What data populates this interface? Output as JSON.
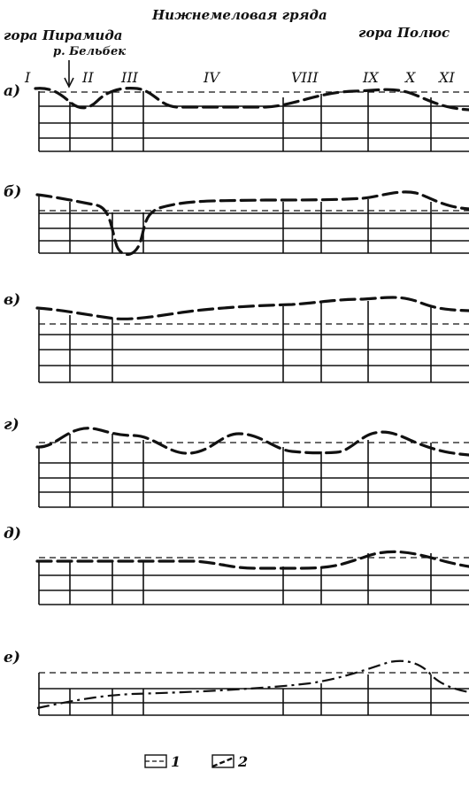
{
  "header": {
    "left": "гора Пирамида",
    "center": "Нижнемеловая гряда",
    "right": "гора Полюс",
    "river": "р. Бельбек"
  },
  "columns": [
    "I",
    "II",
    "III",
    "IV",
    "VIII",
    "IX",
    "X",
    "XI"
  ],
  "panels": [
    {
      "letter": "а)"
    },
    {
      "letter": "б)"
    },
    {
      "letter": "в)"
    },
    {
      "letter": "г)"
    },
    {
      "letter": "д)"
    },
    {
      "letter": "е)"
    }
  ],
  "legend": [
    {
      "number": "1",
      "line_style": "thin-dashed"
    },
    {
      "number": "2",
      "line_style": "thick-dashed"
    }
  ]
}
